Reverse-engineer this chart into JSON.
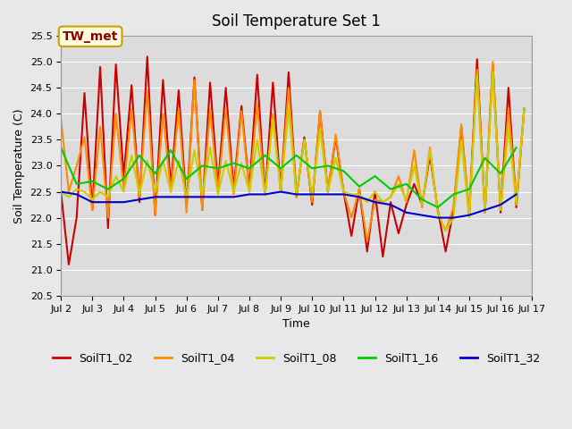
{
  "title": "Soil Temperature Set 1",
  "xlabel": "Time",
  "ylabel": "Soil Temperature (C)",
  "ylim": [
    20.5,
    25.5
  ],
  "yticks": [
    20.5,
    21.0,
    21.5,
    22.0,
    22.5,
    23.0,
    23.5,
    24.0,
    24.5,
    25.0,
    25.5
  ],
  "xtick_labels": [
    "Jul 2",
    "Jul 3",
    "Jul 4",
    "Jul 5",
    "Jul 6",
    "Jul 7",
    "Jul 8",
    "Jul 9",
    "Jul 10",
    "Jul 11",
    "Jul 12",
    "Jul 13",
    "Jul 14",
    "Jul 15",
    "Jul 16",
    "Jul 17"
  ],
  "annotation_text": "TW_met",
  "annotation_color": "#8B0000",
  "annotation_bg": "#FFFFE0",
  "annotation_border": "#C8A000",
  "background_color": "#E8E8E8",
  "plot_bg_color": "#DCDCDC",
  "grid_color": "#FFFFFF",
  "series": [
    {
      "label": "SoilT1_02",
      "color": "#CC0000",
      "lw": 1.5,
      "x": [
        2,
        2.25,
        2.5,
        2.75,
        3,
        3.25,
        3.5,
        3.75,
        4,
        4.25,
        4.5,
        4.75,
        5,
        5.25,
        5.5,
        5.75,
        6,
        6.25,
        6.5,
        6.75,
        7,
        7.25,
        7.5,
        7.75,
        8,
        8.25,
        8.5,
        8.75,
        9,
        9.25,
        9.5,
        9.75,
        10,
        10.25,
        10.5,
        10.75,
        11,
        11.25,
        11.5,
        11.75,
        12,
        12.25,
        12.5,
        12.75,
        13,
        13.25,
        13.5,
        13.75,
        14,
        14.25,
        14.5,
        14.75,
        15,
        15.25,
        15.5,
        15.75,
        16,
        16.25,
        16.5,
        16.75
      ],
      "y": [
        22.5,
        21.1,
        22.0,
        24.4,
        22.15,
        24.9,
        21.8,
        24.95,
        22.8,
        24.55,
        22.3,
        25.1,
        22.05,
        24.65,
        22.6,
        24.45,
        22.2,
        24.7,
        22.15,
        24.6,
        22.6,
        24.5,
        22.55,
        24.15,
        22.55,
        24.75,
        22.45,
        24.6,
        22.5,
        24.8,
        22.4,
        23.55,
        22.25,
        24.05,
        22.5,
        23.55,
        22.5,
        21.65,
        22.55,
        21.35,
        22.5,
        21.25,
        22.3,
        21.7,
        22.25,
        22.65,
        22.25,
        23.2,
        22.15,
        21.35,
        22.15,
        23.75,
        22.05,
        25.05,
        22.1,
        24.95,
        22.1,
        24.5,
        22.2,
        24.1
      ]
    },
    {
      "label": "SoilT1_04",
      "color": "#FF8C00",
      "lw": 1.5,
      "x": [
        2,
        2.25,
        2.5,
        2.75,
        3,
        3.25,
        3.5,
        3.75,
        4,
        4.25,
        4.5,
        4.75,
        5,
        5.25,
        5.5,
        5.75,
        6,
        6.25,
        6.5,
        6.75,
        7,
        7.25,
        7.5,
        7.75,
        8,
        8.25,
        8.5,
        8.75,
        9,
        9.25,
        9.5,
        9.75,
        10,
        10.25,
        10.5,
        10.75,
        11,
        11.25,
        11.5,
        11.75,
        12,
        12.25,
        12.5,
        12.75,
        13,
        13.25,
        13.5,
        13.75,
        14,
        14.25,
        14.5,
        14.75,
        15,
        15.25,
        15.5,
        15.75,
        16,
        16.25,
        16.5,
        16.75
      ],
      "y": [
        23.9,
        22.5,
        23.0,
        23.55,
        22.15,
        23.75,
        22.0,
        24.0,
        22.55,
        24.1,
        22.4,
        24.45,
        22.05,
        24.0,
        22.5,
        24.1,
        22.1,
        24.65,
        22.15,
        24.1,
        22.5,
        24.1,
        22.45,
        24.05,
        22.5,
        24.2,
        22.45,
        24.0,
        22.5,
        24.5,
        22.4,
        23.5,
        22.3,
        24.05,
        22.5,
        23.6,
        22.5,
        22.0,
        22.55,
        21.55,
        22.35,
        22.3,
        22.4,
        22.8,
        22.3,
        23.3,
        22.2,
        23.35,
        22.1,
        21.75,
        22.2,
        23.8,
        22.1,
        24.85,
        22.15,
        25.0,
        22.15,
        24.1,
        22.3,
        24.1
      ]
    },
    {
      "label": "SoilT1_08",
      "color": "#CCCC00",
      "lw": 1.5,
      "x": [
        2,
        2.25,
        2.5,
        2.75,
        3,
        3.25,
        3.5,
        3.75,
        4,
        4.25,
        4.5,
        4.75,
        5,
        5.25,
        5.5,
        5.75,
        6,
        6.25,
        6.5,
        6.75,
        7,
        7.25,
        7.5,
        7.75,
        8,
        8.25,
        8.5,
        8.75,
        9,
        9.25,
        9.5,
        9.75,
        10,
        10.25,
        10.5,
        10.75,
        11,
        11.25,
        11.5,
        11.75,
        12,
        12.25,
        12.5,
        12.75,
        13,
        13.25,
        13.5,
        13.75,
        14,
        14.25,
        14.5,
        14.75,
        15,
        15.25,
        15.5,
        15.75,
        16,
        16.25,
        16.5,
        16.75
      ],
      "y": [
        22.5,
        22.4,
        22.55,
        22.5,
        22.35,
        22.5,
        22.4,
        22.8,
        22.5,
        23.2,
        22.45,
        23.1,
        22.5,
        23.1,
        22.5,
        23.1,
        22.4,
        23.3,
        22.45,
        23.35,
        22.45,
        23.1,
        22.5,
        23.05,
        22.5,
        23.5,
        22.45,
        23.9,
        22.5,
        24.1,
        22.45,
        23.5,
        22.4,
        23.7,
        22.5,
        23.15,
        22.5,
        22.45,
        22.45,
        22.3,
        22.5,
        22.3,
        22.4,
        22.65,
        22.35,
        23.0,
        22.25,
        23.3,
        22.1,
        21.75,
        22.0,
        23.5,
        22.0,
        24.75,
        22.1,
        24.8,
        22.15,
        23.75,
        22.25,
        24.1
      ]
    },
    {
      "label": "SoilT1_16",
      "color": "#00CC00",
      "lw": 1.5,
      "x": [
        2,
        2.5,
        3,
        3.5,
        4,
        4.5,
        5,
        5.5,
        6,
        6.5,
        7,
        7.5,
        8,
        8.5,
        9,
        9.5,
        10,
        10.5,
        11,
        11.5,
        12,
        12.5,
        13,
        13.5,
        14,
        14.5,
        15,
        15.5,
        16,
        16.5
      ],
      "y": [
        23.35,
        22.65,
        22.7,
        22.55,
        22.75,
        23.2,
        22.85,
        23.3,
        22.75,
        23.0,
        22.95,
        23.05,
        22.95,
        23.2,
        22.95,
        23.2,
        22.95,
        23.0,
        22.9,
        22.6,
        22.8,
        22.55,
        22.65,
        22.35,
        22.2,
        22.45,
        22.55,
        23.15,
        22.85,
        23.35
      ]
    },
    {
      "label": "SoilT1_32",
      "color": "#0000CC",
      "lw": 1.5,
      "x": [
        2,
        2.5,
        3,
        3.5,
        4,
        4.5,
        5,
        5.5,
        6,
        6.5,
        7,
        7.5,
        8,
        8.5,
        9,
        9.5,
        10,
        10.5,
        11,
        11.5,
        12,
        12.5,
        13,
        13.5,
        14,
        14.5,
        15,
        15.5,
        16,
        16.5
      ],
      "y": [
        22.5,
        22.45,
        22.3,
        22.3,
        22.3,
        22.35,
        22.4,
        22.4,
        22.4,
        22.4,
        22.4,
        22.4,
        22.45,
        22.45,
        22.5,
        22.45,
        22.45,
        22.45,
        22.45,
        22.4,
        22.3,
        22.25,
        22.1,
        22.05,
        22.0,
        22.0,
        22.05,
        22.15,
        22.25,
        22.45
      ]
    }
  ]
}
